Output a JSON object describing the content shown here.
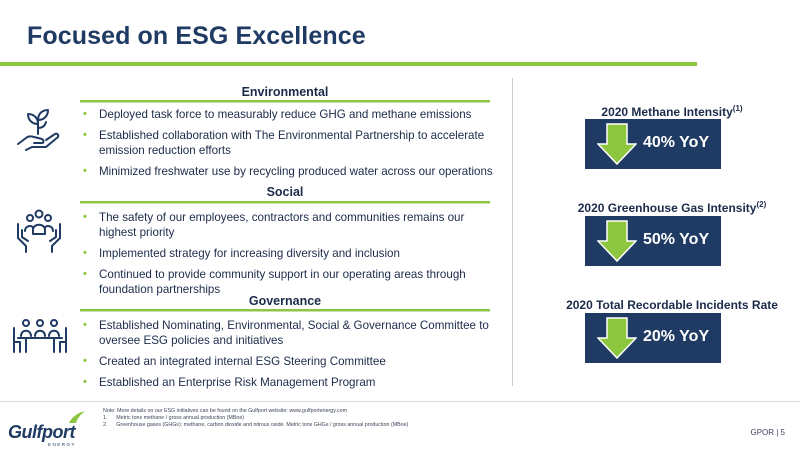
{
  "title": "Focused on ESG Excellence",
  "sections": {
    "environmental": {
      "heading": "Environmental",
      "icon": "plant-hand-icon",
      "bullets": [
        "Deployed task force to measurably reduce GHG and methane emissions",
        "Established collaboration with The Environmental Partnership to accelerate emission reduction efforts",
        "Minimized freshwater use by recycling produced water across our operations"
      ]
    },
    "social": {
      "heading": "Social",
      "icon": "community-hands-icon",
      "bullets": [
        "The safety of our employees, contractors and communities remains our highest priority",
        "Implemented strategy for increasing diversity and inclusion",
        "Continued to provide community support in our operating areas through foundation partnerships"
      ]
    },
    "governance": {
      "heading": "Governance",
      "icon": "boardroom-meeting-icon",
      "bullets": [
        "Established Nominating, Environmental, Social & Governance Committee to oversee ESG policies and initiatives",
        "Created an integrated internal ESG Steering Committee",
        "Established an Enterprise Risk Management Program"
      ]
    }
  },
  "bullet_glyph": "•",
  "metrics": [
    {
      "title": "2020 Methane Intensity",
      "sup": "(1)",
      "value": "40% YoY",
      "icon": "down-arrow-icon"
    },
    {
      "title": "2020 Greenhouse Gas Intensity",
      "sup": "(2)",
      "value": "50% YoY",
      "icon": "down-arrow-icon"
    },
    {
      "title": "2020 Total Recordable Incidents Rate",
      "sup": "",
      "value": "20% YoY",
      "icon": "down-arrow-icon"
    }
  ],
  "footer": {
    "logo_text": "Gulfport",
    "logo_sub": "ENERGY",
    "note": "Note: More details on our ESG initiatives can be found on the Gulfport website: www.gulfportenergy.com",
    "footnotes": [
      "1.      Metric tons methane / gross annual production (MBoe)",
      "2.      Greenhouse gases (GHGs): methane, carbon dioxide and nitrous oxide. Metric tons GHGs / gross annual production (MBoe)"
    ],
    "page_label": "GPOR | 5"
  },
  "colors": {
    "navy": "#1f3a63",
    "green": "#8cc63f",
    "text": "#1c2b4a"
  }
}
